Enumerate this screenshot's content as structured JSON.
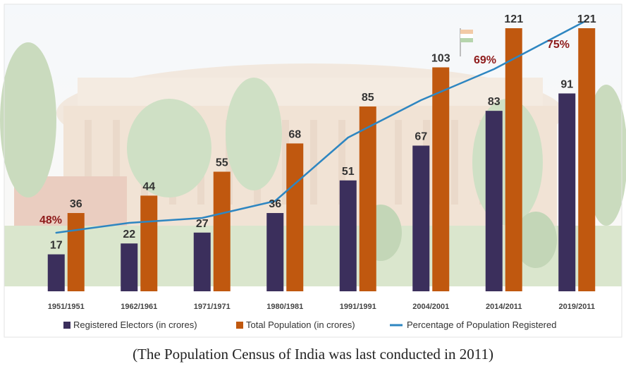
{
  "chart_data": {
    "type": "bar",
    "title": "",
    "xlabel": "",
    "ylabel": "",
    "ylim": [
      0,
      125
    ],
    "grid": false,
    "legend": "bottom",
    "categories": [
      "1951/1951",
      "1962/1961",
      "1971/1971",
      "1980/1981",
      "1991/1991",
      "2004/2001",
      "2014/2011",
      "2019/2011"
    ],
    "series": [
      {
        "name": "Registered Electors (in crores)",
        "type": "bar",
        "color": "#3b2f5c",
        "values": [
          17,
          22,
          27,
          36,
          51,
          67,
          83,
          91
        ]
      },
      {
        "name": "Total Population (in crores)",
        "type": "bar",
        "color": "#c0580f",
        "values": [
          36,
          44,
          55,
          68,
          85,
          103,
          121,
          121
        ]
      },
      {
        "name": "Percentage of Population Registered",
        "type": "line",
        "color": "#2e86c1",
        "values": [
          48,
          50,
          50,
          53,
          60,
          65,
          69,
          75
        ]
      }
    ],
    "annotations": [
      "48%",
      "69%",
      "75%"
    ]
  },
  "caption": "(The Population Census of India was last conducted in 2011)"
}
